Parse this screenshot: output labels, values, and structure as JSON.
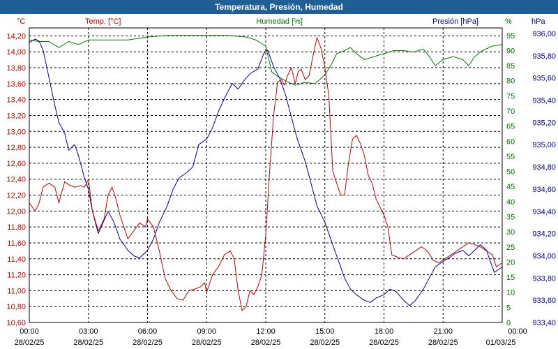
{
  "title": "Temperatura, Presión, Humedad",
  "colors": {
    "temp": "#c00000",
    "hum": "#007800",
    "pres": "#00008c",
    "grid": "#000000",
    "title_bg": "#1f5f96"
  },
  "chart_data": {
    "type": "line",
    "title": "Temperatura, Presión, Humedad",
    "x_ticks": [
      {
        "time": "00:00",
        "date": "28/02/25"
      },
      {
        "time": "03:00",
        "date": "28/02/25"
      },
      {
        "time": "06:00",
        "date": "28/02/25"
      },
      {
        "time": "09:00",
        "date": "28/02/25"
      },
      {
        "time": "12:00",
        "date": "28/02/25"
      },
      {
        "time": "15:00",
        "date": "28/02/25"
      },
      {
        "time": "18:00",
        "date": "28/02/25"
      },
      {
        "time": "21:00",
        "date": "28/02/25"
      },
      {
        "time": "00:00",
        "date": "01/03/25"
      }
    ],
    "x_range_hours": [
      0,
      24
    ],
    "axes": {
      "temp": {
        "label": "Temp. [°C]",
        "unit": "°C",
        "range": [
          10.6,
          14.3
        ],
        "ticks": [
          "14,20",
          "14,00",
          "13,80",
          "13,60",
          "13,40",
          "13,20",
          "13,00",
          "12,80",
          "12,60",
          "12,40",
          "12,20",
          "12,00",
          "11,80",
          "11,60",
          "11,40",
          "11,20",
          "11,00",
          "10,80",
          "10,60"
        ]
      },
      "hum": {
        "label": "Humedad [%]",
        "unit": "%",
        "range": [
          0,
          97.5
        ],
        "ticks": [
          "95",
          "90",
          "85",
          "80",
          "75",
          "70",
          "65",
          "60",
          "55",
          "50",
          "45",
          "40",
          "35",
          "30",
          "25",
          "20",
          "15",
          "10",
          "5",
          "0"
        ]
      },
      "pres": {
        "label": "Presión [hPa]",
        "unit": "hPa",
        "range": [
          933.4,
          936.05
        ],
        "ticks": [
          "936,00",
          "935,80",
          "935,60",
          "935,40",
          "935,20",
          "935,00",
          "934,80",
          "934,60",
          "934,40",
          "934,20",
          "934,00",
          "933,80",
          "933,60",
          "933,40"
        ]
      }
    },
    "series": [
      {
        "name": "Temperatura",
        "unit": "°C",
        "points": [
          [
            0,
            12.1
          ],
          [
            0.3,
            12.0
          ],
          [
            0.5,
            12.1
          ],
          [
            0.7,
            12.3
          ],
          [
            1.0,
            12.35
          ],
          [
            1.3,
            12.3
          ],
          [
            1.5,
            12.1
          ],
          [
            1.8,
            12.37
          ],
          [
            2.0,
            12.33
          ],
          [
            2.3,
            12.3
          ],
          [
            2.6,
            12.32
          ],
          [
            2.8,
            12.3
          ],
          [
            3.0,
            12.4
          ],
          [
            3.2,
            12.0
          ],
          [
            3.5,
            11.75
          ],
          [
            3.8,
            11.9
          ],
          [
            4.0,
            12.2
          ],
          [
            4.2,
            12.3
          ],
          [
            4.4,
            12.15
          ],
          [
            4.6,
            11.95
          ],
          [
            4.8,
            11.8
          ],
          [
            5.0,
            11.65
          ],
          [
            5.3,
            11.75
          ],
          [
            5.6,
            11.85
          ],
          [
            5.9,
            11.8
          ],
          [
            6.0,
            11.9
          ],
          [
            6.3,
            11.8
          ],
          [
            6.6,
            11.5
          ],
          [
            6.9,
            11.15
          ],
          [
            7.2,
            11.0
          ],
          [
            7.5,
            10.9
          ],
          [
            7.8,
            10.88
          ],
          [
            8.1,
            11.0
          ],
          [
            8.4,
            11.02
          ],
          [
            8.7,
            11.05
          ],
          [
            8.9,
            11.1
          ],
          [
            9.0,
            10.98
          ],
          [
            9.3,
            11.2
          ],
          [
            9.6,
            11.3
          ],
          [
            9.9,
            11.45
          ],
          [
            10.2,
            11.5
          ],
          [
            10.4,
            11.4
          ],
          [
            10.6,
            11.0
          ],
          [
            10.8,
            10.75
          ],
          [
            11.0,
            10.8
          ],
          [
            11.2,
            11.0
          ],
          [
            11.4,
            10.95
          ],
          [
            11.6,
            11.05
          ],
          [
            11.8,
            11.2
          ],
          [
            12.0,
            11.7
          ],
          [
            12.2,
            12.5
          ],
          [
            12.4,
            13.2
          ],
          [
            12.6,
            13.62
          ],
          [
            12.8,
            13.65
          ],
          [
            12.95,
            13.58
          ],
          [
            13.1,
            13.7
          ],
          [
            13.3,
            13.8
          ],
          [
            13.5,
            13.6
          ],
          [
            13.65,
            13.75
          ],
          [
            13.8,
            13.78
          ],
          [
            14.0,
            13.65
          ],
          [
            14.2,
            13.7
          ],
          [
            14.4,
            13.95
          ],
          [
            14.6,
            14.18
          ],
          [
            14.8,
            14.05
          ],
          [
            15.0,
            13.8
          ],
          [
            15.2,
            13.45
          ],
          [
            15.4,
            12.5
          ],
          [
            15.6,
            12.35
          ],
          [
            15.8,
            12.2
          ],
          [
            16.0,
            12.2
          ],
          [
            16.2,
            12.6
          ],
          [
            16.4,
            12.9
          ],
          [
            16.6,
            12.95
          ],
          [
            16.8,
            12.85
          ],
          [
            17.0,
            12.7
          ],
          [
            17.2,
            12.45
          ],
          [
            17.4,
            12.35
          ],
          [
            17.6,
            12.15
          ],
          [
            17.8,
            12.05
          ],
          [
            18.0,
            11.95
          ],
          [
            18.2,
            11.8
          ],
          [
            18.4,
            11.45
          ],
          [
            18.7,
            11.42
          ],
          [
            19.0,
            11.4
          ],
          [
            19.3,
            11.45
          ],
          [
            19.6,
            11.5
          ],
          [
            19.9,
            11.55
          ],
          [
            20.2,
            11.5
          ],
          [
            20.5,
            11.38
          ],
          [
            20.8,
            11.35
          ],
          [
            21.1,
            11.4
          ],
          [
            21.4,
            11.45
          ],
          [
            21.7,
            11.5
          ],
          [
            22.0,
            11.55
          ],
          [
            22.3,
            11.6
          ],
          [
            22.6,
            11.58
          ],
          [
            22.9,
            11.55
          ],
          [
            23.2,
            11.5
          ],
          [
            23.5,
            11.45
          ],
          [
            23.7,
            11.3
          ],
          [
            24.0,
            11.35
          ]
        ]
      },
      {
        "name": "Humedad",
        "unit": "%",
        "points": [
          [
            0,
            93.5
          ],
          [
            0.5,
            93
          ],
          [
            1.0,
            93
          ],
          [
            1.5,
            91
          ],
          [
            2.0,
            93
          ],
          [
            2.5,
            92
          ],
          [
            3.0,
            93.5
          ],
          [
            4.0,
            93.5
          ],
          [
            5.0,
            93.5
          ],
          [
            6.0,
            94.5
          ],
          [
            7.0,
            95
          ],
          [
            8.0,
            95
          ],
          [
            9.0,
            95
          ],
          [
            10.0,
            95
          ],
          [
            11.0,
            94.5
          ],
          [
            11.5,
            93.5
          ],
          [
            12.0,
            91.5
          ],
          [
            12.3,
            83
          ],
          [
            12.6,
            81.5
          ],
          [
            13.0,
            80
          ],
          [
            13.5,
            78.5
          ],
          [
            14.0,
            79.5
          ],
          [
            14.5,
            79
          ],
          [
            15.0,
            82
          ],
          [
            15.3,
            85
          ],
          [
            15.6,
            89
          ],
          [
            16.0,
            90
          ],
          [
            16.3,
            91
          ],
          [
            16.6,
            89
          ],
          [
            17.0,
            87
          ],
          [
            17.5,
            88
          ],
          [
            18.0,
            89
          ],
          [
            18.5,
            90
          ],
          [
            19.0,
            90
          ],
          [
            19.5,
            89.5
          ],
          [
            20.0,
            90.5
          ],
          [
            20.3,
            88
          ],
          [
            20.6,
            85
          ],
          [
            21.0,
            87
          ],
          [
            21.5,
            88
          ],
          [
            22.0,
            87
          ],
          [
            22.3,
            85
          ],
          [
            22.6,
            88
          ],
          [
            23.0,
            90
          ],
          [
            23.5,
            91.5
          ],
          [
            24.0,
            92
          ]
        ]
      },
      {
        "name": "Presión",
        "unit": "hPa",
        "points": [
          [
            0,
            935.92
          ],
          [
            0.3,
            935.95
          ],
          [
            0.5,
            935.93
          ],
          [
            0.7,
            935.85
          ],
          [
            1.0,
            935.6
          ],
          [
            1.3,
            935.35
          ],
          [
            1.5,
            935.2
          ],
          [
            1.8,
            935.1
          ],
          [
            2.0,
            934.95
          ],
          [
            2.3,
            935.0
          ],
          [
            2.5,
            934.9
          ],
          [
            2.8,
            934.7
          ],
          [
            3.0,
            934.6
          ],
          [
            3.2,
            934.4
          ],
          [
            3.5,
            934.2
          ],
          [
            3.8,
            934.32
          ],
          [
            4.0,
            934.4
          ],
          [
            4.3,
            934.3
          ],
          [
            4.6,
            934.15
          ],
          [
            5.0,
            934.05
          ],
          [
            5.3,
            934.0
          ],
          [
            5.6,
            933.98
          ],
          [
            6.0,
            934.05
          ],
          [
            6.3,
            934.15
          ],
          [
            6.6,
            934.3
          ],
          [
            7.0,
            934.45
          ],
          [
            7.3,
            934.6
          ],
          [
            7.6,
            934.7
          ],
          [
            8.0,
            934.75
          ],
          [
            8.3,
            934.8
          ],
          [
            8.6,
            935.0
          ],
          [
            9.0,
            935.05
          ],
          [
            9.3,
            935.15
          ],
          [
            9.6,
            935.3
          ],
          [
            10.0,
            935.45
          ],
          [
            10.3,
            935.55
          ],
          [
            10.6,
            935.5
          ],
          [
            11.0,
            935.6
          ],
          [
            11.3,
            935.65
          ],
          [
            11.6,
            935.68
          ],
          [
            11.9,
            935.82
          ],
          [
            12.1,
            935.85
          ],
          [
            12.4,
            935.7
          ],
          [
            12.7,
            935.6
          ],
          [
            13.0,
            935.45
          ],
          [
            13.3,
            935.25
          ],
          [
            13.6,
            935.05
          ],
          [
            14.0,
            934.85
          ],
          [
            14.3,
            934.65
          ],
          [
            14.6,
            934.45
          ],
          [
            15.0,
            934.3
          ],
          [
            15.3,
            934.15
          ],
          [
            15.6,
            934.0
          ],
          [
            16.0,
            933.8
          ],
          [
            16.3,
            933.7
          ],
          [
            16.6,
            933.65
          ],
          [
            17.0,
            933.6
          ],
          [
            17.3,
            933.58
          ],
          [
            17.6,
            933.62
          ],
          [
            18.0,
            933.65
          ],
          [
            18.3,
            933.7
          ],
          [
            18.6,
            933.68
          ],
          [
            19.0,
            933.6
          ],
          [
            19.3,
            933.55
          ],
          [
            19.6,
            933.6
          ],
          [
            20.0,
            933.7
          ],
          [
            20.3,
            933.8
          ],
          [
            20.6,
            933.9
          ],
          [
            21.0,
            933.95
          ],
          [
            21.3,
            933.98
          ],
          [
            21.6,
            934.02
          ],
          [
            22.0,
            934.05
          ],
          [
            22.3,
            934.0
          ],
          [
            22.6,
            934.05
          ],
          [
            22.9,
            934.1
          ],
          [
            23.2,
            934.05
          ],
          [
            23.4,
            933.95
          ],
          [
            23.6,
            933.85
          ],
          [
            24.0,
            933.9
          ]
        ]
      }
    ]
  }
}
